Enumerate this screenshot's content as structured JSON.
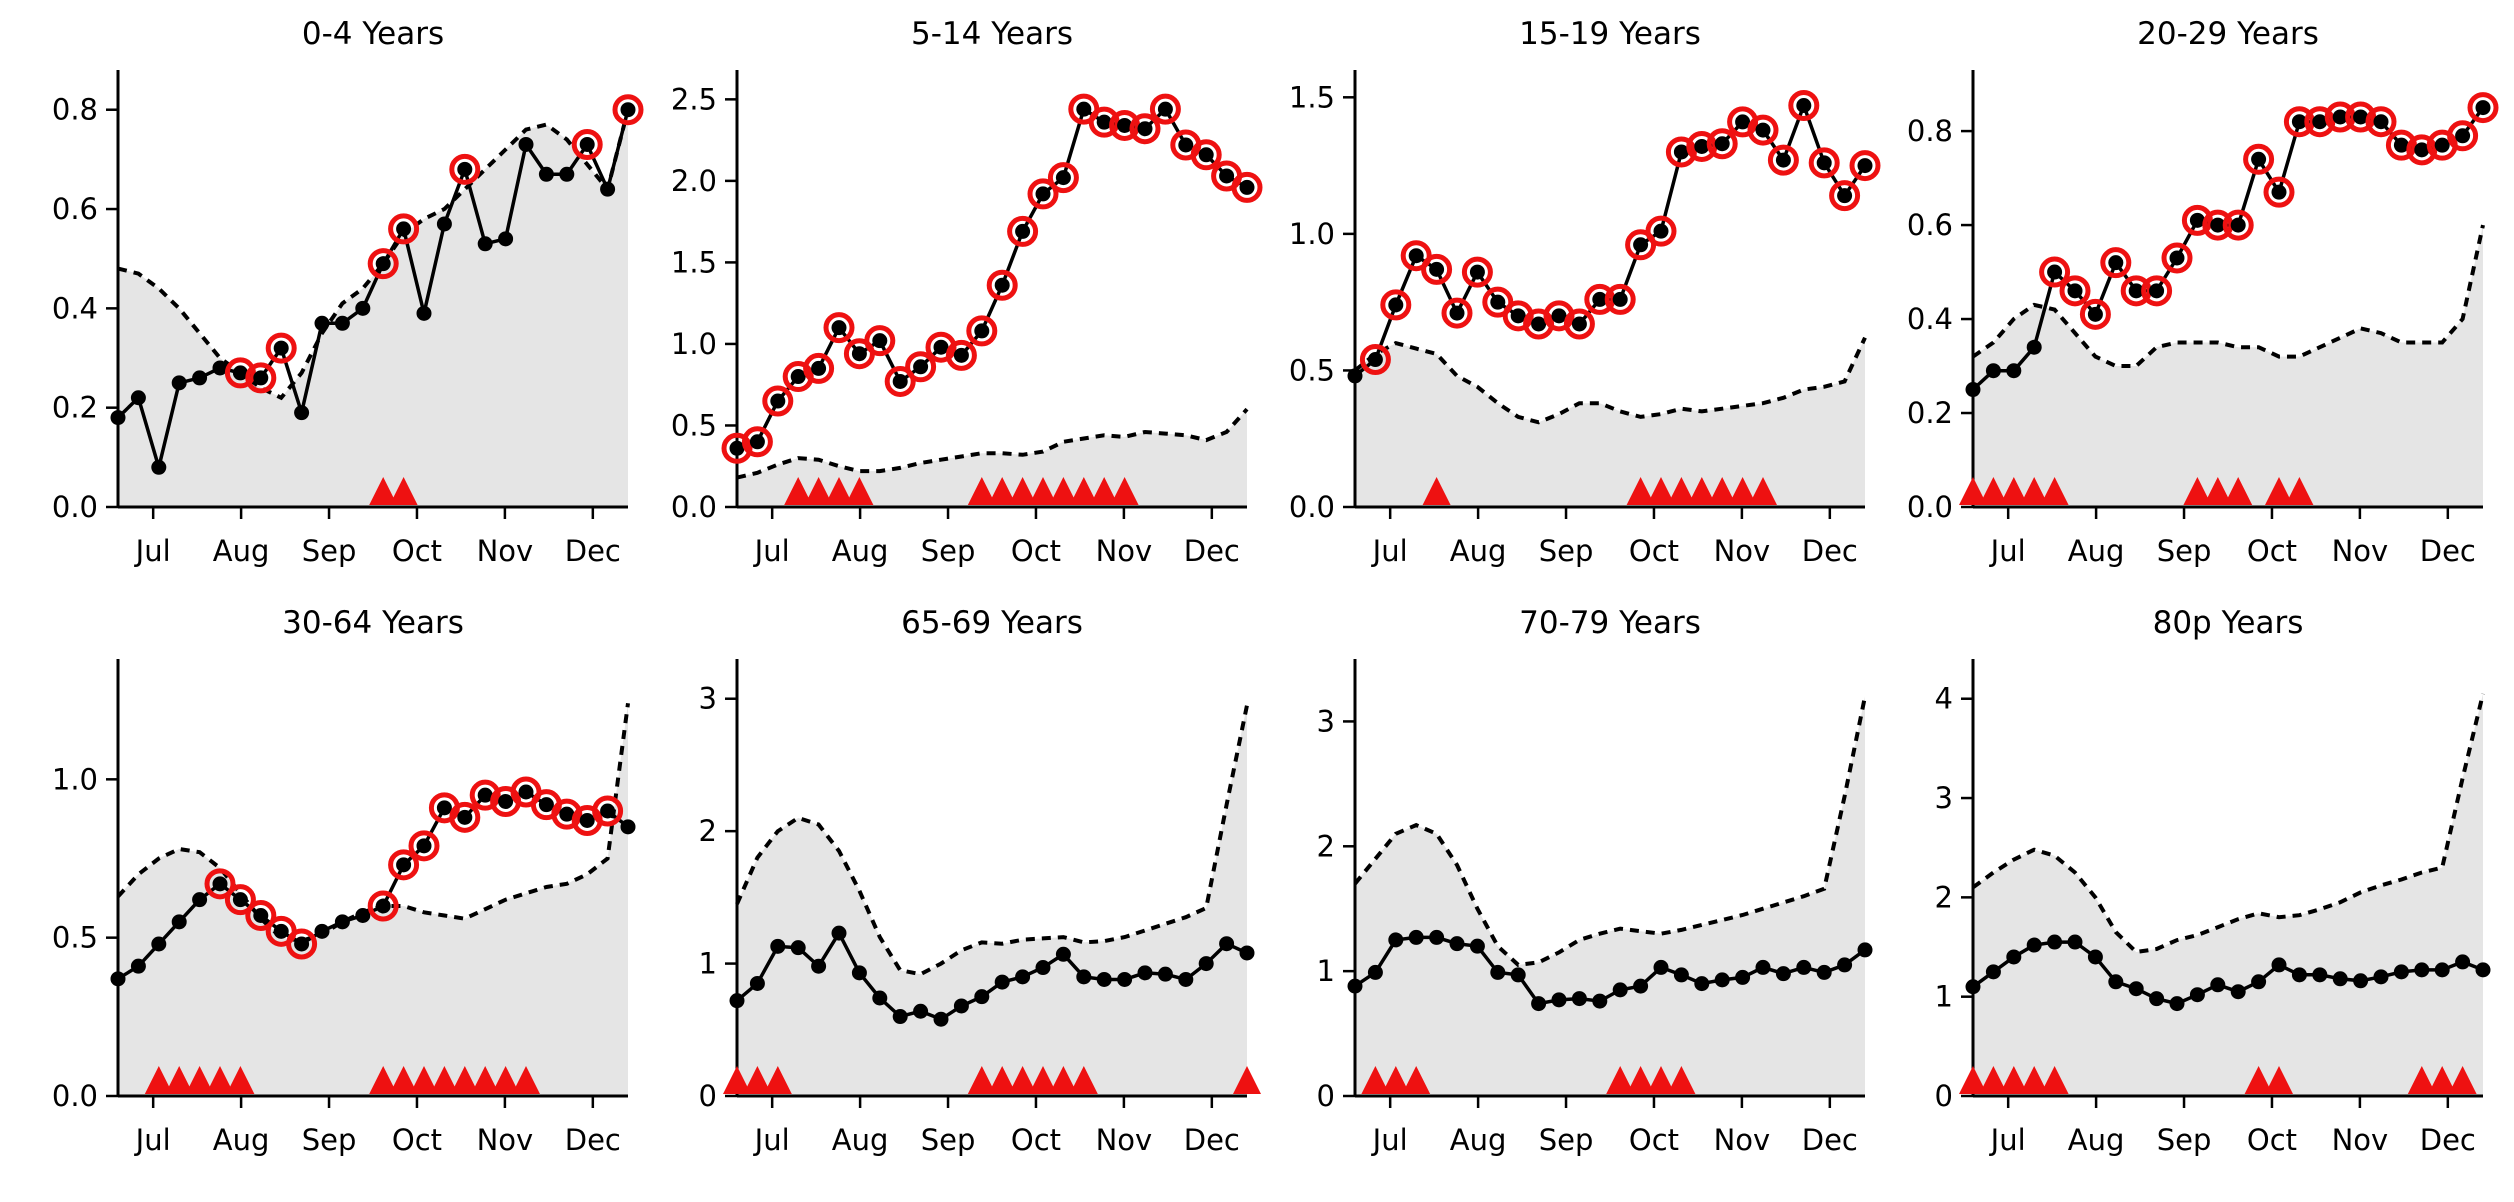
{
  "colors": {
    "shade": "#e5e5e5",
    "line": "#000000",
    "highlight": "#ee1111",
    "marker": "#ee1111"
  },
  "x_axis": {
    "tick_positions": [
      0.4,
      1.4,
      2.4,
      3.4,
      4.4,
      5.4
    ],
    "tick_labels": [
      "Jul",
      "Aug",
      "Sep",
      "Oct",
      "Nov",
      "Dec"
    ],
    "xlim": [
      0,
      5.8
    ]
  },
  "chart_data": [
    {
      "type": "line",
      "title": "0-4 Years",
      "ylim": [
        0,
        0.88
      ],
      "yticks": [
        "0.0",
        "0.2",
        "0.4",
        "0.6",
        "0.8"
      ],
      "ytick_values": [
        0,
        0.2,
        0.4,
        0.6,
        0.8
      ],
      "values": [
        0.18,
        0.22,
        0.08,
        0.25,
        0.26,
        0.28,
        0.27,
        0.26,
        0.32,
        0.19,
        0.37,
        0.37,
        0.4,
        0.49,
        0.56,
        0.39,
        0.57,
        0.68,
        0.53,
        0.54,
        0.73,
        0.67,
        0.67,
        0.73,
        0.64,
        0.8
      ],
      "highlight": [
        false,
        false,
        false,
        false,
        false,
        false,
        true,
        true,
        true,
        false,
        false,
        false,
        false,
        true,
        true,
        false,
        false,
        true,
        false,
        false,
        false,
        false,
        false,
        true,
        false,
        true
      ],
      "threshold": [
        0.48,
        0.47,
        0.44,
        0.4,
        0.35,
        0.3,
        0.27,
        0.24,
        0.22,
        0.27,
        0.35,
        0.41,
        0.44,
        0.49,
        0.55,
        0.58,
        0.6,
        0.64,
        0.68,
        0.72,
        0.76,
        0.77,
        0.74,
        0.69,
        0.64,
        0.8
      ],
      "markers": [
        13,
        14
      ]
    },
    {
      "type": "line",
      "title": "5-14 Years",
      "ylim": [
        0,
        2.68
      ],
      "yticks": [
        "0.0",
        "0.5",
        "1.0",
        "1.5",
        "2.0",
        "2.5"
      ],
      "ytick_values": [
        0,
        0.5,
        1.0,
        1.5,
        2.0,
        2.5
      ],
      "values": [
        0.36,
        0.4,
        0.65,
        0.8,
        0.85,
        1.1,
        0.94,
        1.02,
        0.77,
        0.86,
        0.98,
        0.93,
        1.08,
        1.36,
        1.69,
        1.92,
        2.02,
        2.44,
        2.36,
        2.34,
        2.32,
        2.44,
        2.22,
        2.16,
        2.03,
        1.96
      ],
      "highlight": [
        true,
        true,
        true,
        true,
        true,
        true,
        true,
        true,
        true,
        true,
        true,
        true,
        true,
        true,
        true,
        true,
        true,
        true,
        true,
        true,
        true,
        true,
        true,
        true,
        true,
        true
      ],
      "threshold": [
        0.18,
        0.21,
        0.26,
        0.3,
        0.29,
        0.25,
        0.22,
        0.22,
        0.24,
        0.27,
        0.29,
        0.31,
        0.33,
        0.33,
        0.32,
        0.34,
        0.4,
        0.42,
        0.44,
        0.43,
        0.46,
        0.45,
        0.44,
        0.41,
        0.46,
        0.6
      ],
      "markers": [
        3,
        4,
        5,
        6,
        12,
        13,
        14,
        15,
        16,
        17,
        18,
        19
      ]
    },
    {
      "type": "line",
      "title": "15-19 Years",
      "ylim": [
        0,
        1.6
      ],
      "yticks": [
        "0.0",
        "0.5",
        "1.0",
        "1.5"
      ],
      "ytick_values": [
        0,
        0.5,
        1.0,
        1.5
      ],
      "values": [
        0.48,
        0.54,
        0.74,
        0.92,
        0.87,
        0.71,
        0.86,
        0.75,
        0.7,
        0.67,
        0.7,
        0.67,
        0.76,
        0.76,
        0.96,
        1.01,
        1.3,
        1.32,
        1.33,
        1.41,
        1.38,
        1.27,
        1.47,
        1.26,
        1.14,
        1.25
      ],
      "highlight": [
        false,
        true,
        true,
        true,
        true,
        true,
        true,
        true,
        true,
        true,
        true,
        true,
        true,
        true,
        true,
        true,
        true,
        true,
        true,
        true,
        true,
        true,
        true,
        true,
        true,
        true
      ],
      "threshold": [
        0.5,
        0.56,
        0.6,
        0.58,
        0.56,
        0.48,
        0.44,
        0.38,
        0.33,
        0.31,
        0.34,
        0.38,
        0.38,
        0.35,
        0.33,
        0.34,
        0.36,
        0.35,
        0.36,
        0.37,
        0.38,
        0.4,
        0.43,
        0.44,
        0.46,
        0.62
      ],
      "markers": [
        4,
        14,
        15,
        16,
        17,
        18,
        19,
        20
      ]
    },
    {
      "type": "line",
      "title": "20-29 Years",
      "ylim": [
        0,
        0.93
      ],
      "yticks": [
        "0.0",
        "0.2",
        "0.4",
        "0.6",
        "0.8"
      ],
      "ytick_values": [
        0,
        0.2,
        0.4,
        0.6,
        0.8
      ],
      "values": [
        0.25,
        0.29,
        0.29,
        0.34,
        0.5,
        0.46,
        0.41,
        0.52,
        0.46,
        0.46,
        0.53,
        0.61,
        0.6,
        0.6,
        0.74,
        0.67,
        0.82,
        0.82,
        0.83,
        0.83,
        0.82,
        0.77,
        0.76,
        0.77,
        0.79,
        0.85
      ],
      "highlight": [
        false,
        false,
        false,
        false,
        true,
        true,
        true,
        true,
        true,
        true,
        true,
        true,
        true,
        true,
        true,
        true,
        true,
        true,
        true,
        true,
        true,
        true,
        true,
        true,
        true,
        true
      ],
      "threshold": [
        0.32,
        0.35,
        0.4,
        0.43,
        0.42,
        0.37,
        0.32,
        0.3,
        0.3,
        0.34,
        0.35,
        0.35,
        0.35,
        0.34,
        0.34,
        0.32,
        0.32,
        0.34,
        0.36,
        0.38,
        0.37,
        0.35,
        0.35,
        0.35,
        0.4,
        0.6
      ],
      "markers": [
        0,
        1,
        2,
        3,
        4,
        11,
        12,
        13,
        15,
        16
      ]
    },
    {
      "type": "line",
      "title": "30-64 Years",
      "ylim": [
        0,
        1.38
      ],
      "yticks": [
        "0.0",
        "0.5",
        "1.0"
      ],
      "ytick_values": [
        0,
        0.5,
        1.0
      ],
      "values": [
        0.37,
        0.41,
        0.48,
        0.55,
        0.62,
        0.67,
        0.62,
        0.57,
        0.52,
        0.48,
        0.52,
        0.55,
        0.57,
        0.6,
        0.73,
        0.79,
        0.91,
        0.88,
        0.95,
        0.93,
        0.96,
        0.92,
        0.89,
        0.87,
        0.9,
        0.85
      ],
      "highlight": [
        false,
        false,
        false,
        false,
        false,
        true,
        true,
        true,
        true,
        true,
        false,
        false,
        false,
        true,
        true,
        true,
        true,
        true,
        true,
        true,
        true,
        true,
        true,
        true,
        true,
        false
      ],
      "threshold": [
        0.63,
        0.7,
        0.75,
        0.78,
        0.77,
        0.72,
        0.64,
        0.56,
        0.5,
        0.49,
        0.51,
        0.55,
        0.58,
        0.6,
        0.6,
        0.58,
        0.57,
        0.56,
        0.59,
        0.62,
        0.64,
        0.66,
        0.67,
        0.7,
        0.75,
        1.24
      ],
      "markers": [
        2,
        3,
        4,
        5,
        6,
        13,
        14,
        15,
        16,
        17,
        18,
        19,
        20
      ]
    },
    {
      "type": "line",
      "title": "65-69 Years",
      "ylim": [
        0,
        3.3
      ],
      "yticks": [
        "0",
        "1",
        "2",
        "3"
      ],
      "ytick_values": [
        0,
        1,
        2,
        3
      ],
      "values": [
        0.72,
        0.85,
        1.13,
        1.12,
        0.98,
        1.23,
        0.93,
        0.74,
        0.6,
        0.64,
        0.58,
        0.68,
        0.75,
        0.86,
        0.9,
        0.97,
        1.07,
        0.9,
        0.88,
        0.88,
        0.93,
        0.92,
        0.88,
        1.0,
        1.15,
        1.08
      ],
      "highlight": [
        false,
        false,
        false,
        false,
        false,
        false,
        false,
        false,
        false,
        false,
        false,
        false,
        false,
        false,
        false,
        false,
        false,
        false,
        false,
        false,
        false,
        false,
        false,
        false,
        false,
        false
      ],
      "threshold": [
        1.45,
        1.8,
        2.0,
        2.1,
        2.05,
        1.85,
        1.55,
        1.2,
        0.95,
        0.92,
        1.0,
        1.1,
        1.16,
        1.15,
        1.18,
        1.19,
        1.2,
        1.16,
        1.17,
        1.2,
        1.25,
        1.3,
        1.35,
        1.42,
        2.2,
        2.95
      ],
      "markers": [
        0,
        1,
        2,
        12,
        13,
        14,
        15,
        16,
        17,
        25
      ]
    },
    {
      "type": "line",
      "title": "70-79 Years",
      "ylim": [
        0,
        3.5
      ],
      "yticks": [
        "0",
        "1",
        "2",
        "3"
      ],
      "ytick_values": [
        0,
        1,
        2,
        3
      ],
      "values": [
        0.88,
        0.99,
        1.25,
        1.27,
        1.27,
        1.22,
        1.2,
        0.99,
        0.97,
        0.74,
        0.77,
        0.78,
        0.76,
        0.85,
        0.88,
        1.03,
        0.97,
        0.9,
        0.93,
        0.95,
        1.03,
        0.98,
        1.03,
        0.99,
        1.05,
        1.17
      ],
      "highlight": [
        false,
        false,
        false,
        false,
        false,
        false,
        false,
        false,
        false,
        false,
        false,
        false,
        false,
        false,
        false,
        false,
        false,
        false,
        false,
        false,
        false,
        false,
        false,
        false,
        false,
        false
      ],
      "threshold": [
        1.7,
        1.9,
        2.1,
        2.17,
        2.1,
        1.85,
        1.5,
        1.2,
        1.05,
        1.07,
        1.15,
        1.25,
        1.3,
        1.34,
        1.32,
        1.3,
        1.33,
        1.37,
        1.41,
        1.45,
        1.5,
        1.55,
        1.6,
        1.66,
        2.4,
        3.2
      ],
      "markers": [
        1,
        2,
        3,
        13,
        14,
        15,
        16
      ]
    },
    {
      "type": "line",
      "title": "80p Years",
      "ylim": [
        0,
        4.4
      ],
      "yticks": [
        "0",
        "1",
        "2",
        "3",
        "4"
      ],
      "ytick_values": [
        0,
        1,
        2,
        3,
        4
      ],
      "values": [
        1.1,
        1.25,
        1.4,
        1.52,
        1.55,
        1.55,
        1.4,
        1.15,
        1.08,
        0.98,
        0.93,
        1.02,
        1.12,
        1.05,
        1.15,
        1.32,
        1.22,
        1.22,
        1.18,
        1.16,
        1.2,
        1.25,
        1.27,
        1.27,
        1.35,
        1.27
      ],
      "highlight": [
        false,
        false,
        false,
        false,
        false,
        false,
        false,
        false,
        false,
        false,
        false,
        false,
        false,
        false,
        false,
        false,
        false,
        false,
        false,
        false,
        false,
        false,
        false,
        false,
        false,
        false
      ],
      "threshold": [
        2.1,
        2.25,
        2.38,
        2.48,
        2.42,
        2.25,
        2.0,
        1.65,
        1.45,
        1.48,
        1.57,
        1.62,
        1.7,
        1.78,
        1.84,
        1.8,
        1.82,
        1.88,
        1.95,
        2.05,
        2.12,
        2.18,
        2.25,
        2.3,
        3.2,
        4.05
      ],
      "markers": [
        0,
        1,
        2,
        3,
        4,
        14,
        15,
        22,
        23,
        24
      ]
    }
  ]
}
